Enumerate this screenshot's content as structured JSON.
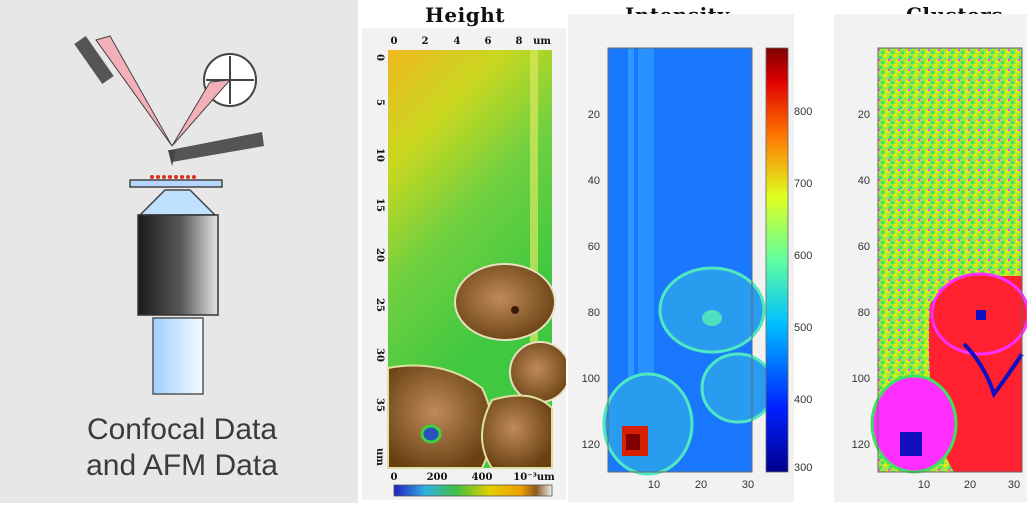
{
  "setup": {
    "caption_line1": "Confocal Data",
    "caption_line2": "and AFM Data"
  },
  "panels": {
    "height": {
      "title": "Height",
      "top_ticks": [
        "0",
        "2",
        "4",
        "6",
        "8"
      ],
      "top_unit": "um",
      "left_ticks": [
        "0",
        "5",
        "10",
        "15",
        "20",
        "25",
        "30",
        "35"
      ],
      "left_unit": "um",
      "colorbar_ticks": [
        "0",
        "200",
        "400"
      ],
      "colorbar_unit": "10⁻³um"
    },
    "intensity": {
      "title": "Intensity",
      "y_ticks": [
        "20",
        "40",
        "60",
        "80",
        "100",
        "120"
      ],
      "x_ticks": [
        "10",
        "20",
        "30"
      ],
      "colorbar_ticks": [
        "800",
        "700",
        "600",
        "500",
        "400",
        "300"
      ]
    },
    "clusters": {
      "title": "Clusters",
      "y_ticks": [
        "20",
        "40",
        "60",
        "80",
        "100",
        "120"
      ],
      "x_ticks": [
        "10",
        "20",
        "30"
      ]
    }
  },
  "chart_data": [
    {
      "type": "heatmap",
      "title": "Height",
      "x_range": [
        0,
        9
      ],
      "y_range": [
        0,
        40
      ],
      "x_unit": "um",
      "y_unit": "um",
      "colorbar_range": [
        0,
        500
      ],
      "colorbar_unit": "10⁻³um",
      "colormap": [
        "#2020c0",
        "#30b040",
        "#e0d000",
        "#f0a000",
        "#8a5a20"
      ]
    },
    {
      "type": "heatmap",
      "title": "Intensity",
      "x_range": [
        1,
        32
      ],
      "y_range": [
        1,
        128
      ],
      "y_ticks": [
        20,
        40,
        60,
        80,
        100,
        120
      ],
      "x_ticks": [
        10,
        20,
        30
      ],
      "colorbar_range": [
        300,
        870
      ],
      "colorbar_ticks": [
        300,
        400,
        500,
        600,
        700,
        800
      ],
      "colormap": [
        "#00008f",
        "#0050ff",
        "#00e0ff",
        "#80ff80",
        "#ffe000",
        "#ff3000",
        "#800000"
      ]
    },
    {
      "type": "heatmap",
      "title": "Clusters",
      "x_range": [
        1,
        32
      ],
      "y_range": [
        1,
        128
      ],
      "y_ticks": [
        20,
        40,
        60,
        80,
        100,
        120
      ],
      "x_ticks": [
        10,
        20,
        30
      ],
      "colors": [
        "#e8f000",
        "#40e060",
        "#ff2030",
        "#ff30ff",
        "#1010c0"
      ]
    }
  ]
}
